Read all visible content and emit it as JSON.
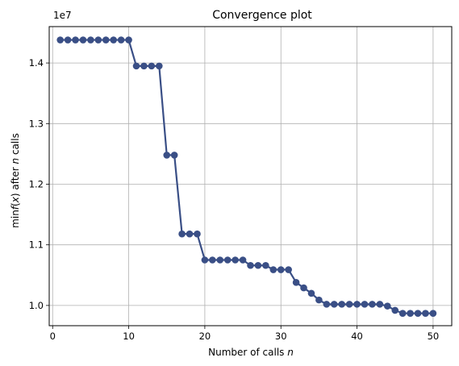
{
  "chart_data": {
    "type": "line",
    "title": "Convergence plot",
    "xlabel": "Number of calls",
    "xlabel_var": "n",
    "ylabel_parts": [
      "min",
      "f",
      "(",
      "x",
      ") after ",
      "n",
      " calls"
    ],
    "y_offset_label": "1e7",
    "xlim": [
      -0.45,
      52.45
    ],
    "ylim": [
      0.9666,
      1.46
    ],
    "x_ticks": [
      0,
      10,
      20,
      30,
      40,
      50
    ],
    "y_ticks": [
      1.0,
      1.1,
      1.2,
      1.3,
      1.4
    ],
    "y_tick_labels": [
      "1.0",
      "1.1",
      "1.2",
      "1.3",
      "1.4"
    ],
    "grid": true,
    "line_color": "#3a4f86",
    "grid_color": "#b0b0b0",
    "series": [
      {
        "x": [
          1,
          2,
          3,
          4,
          5,
          6,
          7,
          8,
          9,
          10,
          11,
          12,
          13,
          14,
          15,
          16,
          17,
          18,
          19,
          20,
          21,
          22,
          23,
          24,
          25,
          26,
          27,
          28,
          29,
          30,
          31,
          32,
          33,
          34,
          35,
          36,
          37,
          38,
          39,
          40,
          41,
          42,
          43,
          44,
          45,
          46,
          47,
          48,
          49,
          50
        ],
        "y": [
          1.438,
          1.438,
          1.438,
          1.438,
          1.438,
          1.438,
          1.438,
          1.438,
          1.438,
          1.438,
          1.395,
          1.395,
          1.395,
          1.395,
          1.248,
          1.248,
          1.118,
          1.118,
          1.118,
          1.075,
          1.075,
          1.075,
          1.075,
          1.075,
          1.075,
          1.066,
          1.066,
          1.066,
          1.059,
          1.059,
          1.059,
          1.038,
          1.029,
          1.02,
          1.009,
          1.002,
          1.002,
          1.002,
          1.002,
          1.002,
          1.002,
          1.002,
          1.002,
          0.999,
          0.992,
          0.987,
          0.987,
          0.987,
          0.987,
          0.987
        ]
      }
    ]
  }
}
